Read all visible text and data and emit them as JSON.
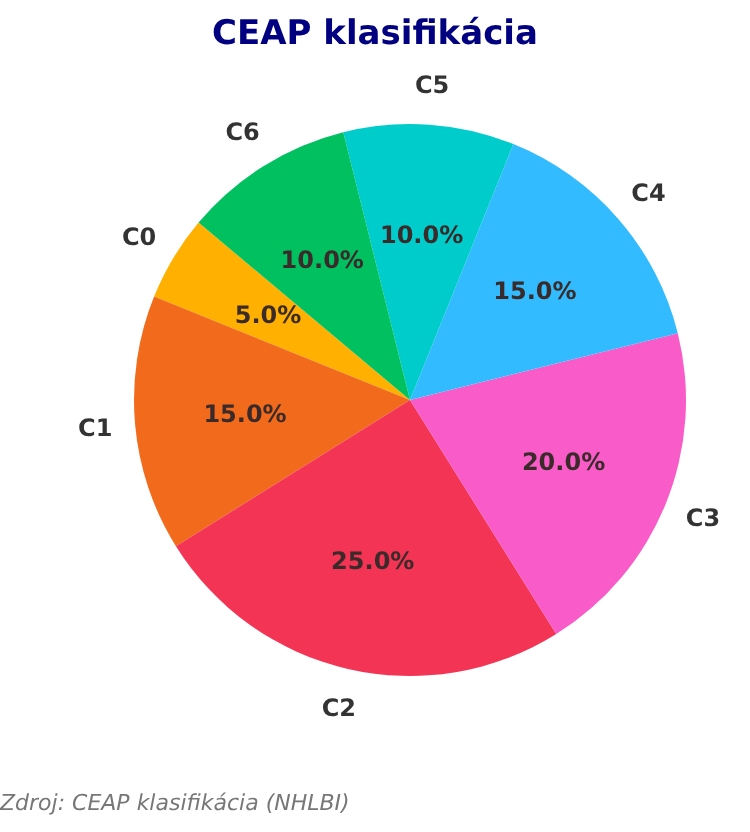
{
  "chart_data": {
    "type": "pie",
    "title": "CEAP klasifikácia",
    "categories": [
      "C0",
      "C1",
      "C2",
      "C3",
      "C4",
      "C5",
      "C6"
    ],
    "values": [
      5,
      15,
      25,
      20,
      15,
      10,
      10
    ],
    "value_labels": [
      "5.0%",
      "15.0%",
      "25.0%",
      "20.0%",
      "15.0%",
      "10.0%",
      "10.0%"
    ],
    "colors": [
      "#ffb000",
      "#f26b1d",
      "#f43454",
      "#f95bc8",
      "#33bbff",
      "#00cccc",
      "#00c060"
    ],
    "annotations": [
      "Zdroj: CEAP klasifikácia (NHLBI)"
    ]
  }
}
